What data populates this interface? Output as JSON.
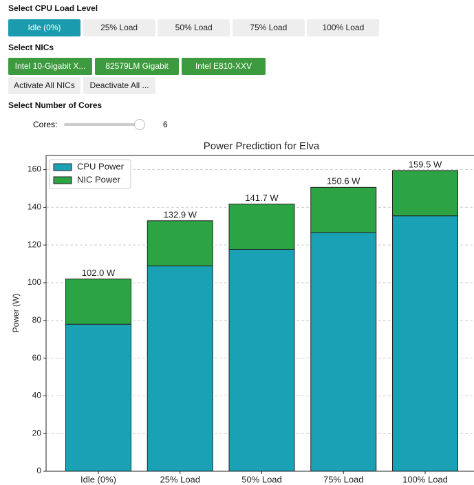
{
  "cpu_load": {
    "label": "Select CPU Load Level",
    "options": [
      "Idle (0%)",
      "25% Load",
      "50% Load",
      "75% Load",
      "100% Load"
    ],
    "selected": 0
  },
  "nics": {
    "label": "Select NICs",
    "options": [
      "Intel 10-Gigabit X...",
      "82579LM Gigabit",
      "Intel E810-XXV"
    ],
    "actions": [
      "Activate All NICs",
      "Deactivate All ..."
    ]
  },
  "cores": {
    "label": "Select Number of Cores",
    "slider_label": "Cores:",
    "value": 6
  },
  "chart_data": {
    "type": "stacked_bar",
    "title": "Power Prediction for Elva",
    "y_label": "Power (W)",
    "categories": [
      "Idle (0%)",
      "25% Load",
      "50% Load",
      "75% Load",
      "100% Load"
    ],
    "series": [
      {
        "name": "CPU Power",
        "color": "#1aa1b6",
        "values": [
          78.0,
          108.9,
          117.7,
          126.6,
          135.5
        ]
      },
      {
        "name": "NIC Power",
        "color": "#2ca443",
        "values": [
          24.0,
          24.0,
          24.0,
          24.0,
          24.0
        ]
      }
    ],
    "total_labels": [
      "102.0 W",
      "132.9 W",
      "141.7 W",
      "150.6 W",
      "159.5 W"
    ],
    "ylim": [
      0,
      167.5
    ],
    "yticks": [
      0,
      20,
      40,
      60,
      80,
      100,
      120,
      140,
      160
    ],
    "grid": true,
    "legend": "upper left"
  }
}
